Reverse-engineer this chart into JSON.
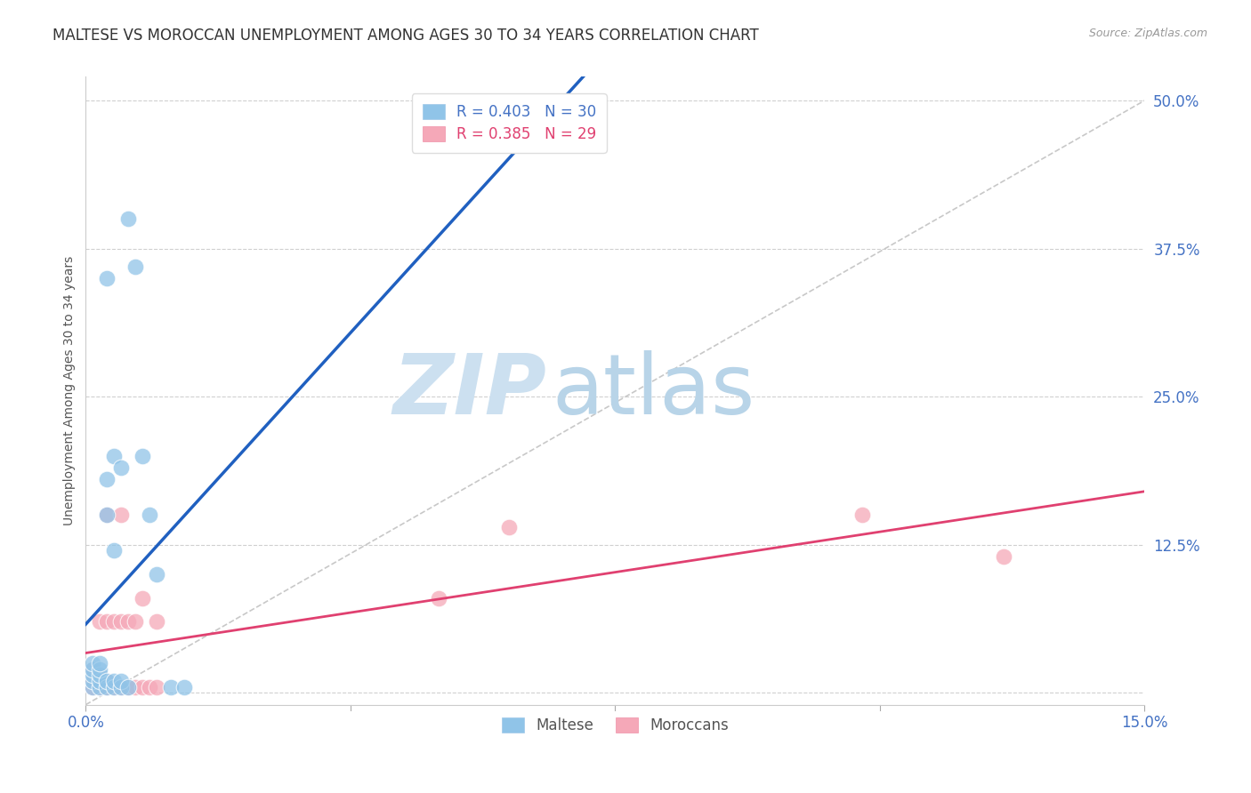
{
  "title": "MALTESE VS MOROCCAN UNEMPLOYMENT AMONG AGES 30 TO 34 YEARS CORRELATION CHART",
  "source": "Source: ZipAtlas.com",
  "ylabel": "Unemployment Among Ages 30 to 34 years",
  "xmin": 0.0,
  "xmax": 0.15,
  "ymin": -0.01,
  "ymax": 0.52,
  "maltese_color": "#90c4e8",
  "moroccan_color": "#f5a8b8",
  "trend_line_maltese_color": "#2060c0",
  "trend_line_moroccan_color": "#e04070",
  "diagonal_color": "#c8c8c8",
  "maltese_R": 0.403,
  "maltese_N": 30,
  "moroccan_R": 0.385,
  "moroccan_N": 29,
  "maltese_x": [
    0.001,
    0.001,
    0.001,
    0.001,
    0.001,
    0.002,
    0.002,
    0.002,
    0.002,
    0.002,
    0.003,
    0.003,
    0.003,
    0.003,
    0.003,
    0.004,
    0.004,
    0.004,
    0.004,
    0.005,
    0.005,
    0.005,
    0.006,
    0.006,
    0.007,
    0.008,
    0.009,
    0.01,
    0.012,
    0.014
  ],
  "maltese_y": [
    0.005,
    0.01,
    0.015,
    0.02,
    0.025,
    0.005,
    0.01,
    0.015,
    0.02,
    0.025,
    0.005,
    0.01,
    0.15,
    0.18,
    0.35,
    0.005,
    0.01,
    0.12,
    0.2,
    0.005,
    0.01,
    0.19,
    0.005,
    0.4,
    0.36,
    0.2,
    0.15,
    0.1,
    0.005,
    0.005
  ],
  "moroccan_x": [
    0.001,
    0.001,
    0.001,
    0.002,
    0.002,
    0.002,
    0.002,
    0.003,
    0.003,
    0.003,
    0.003,
    0.004,
    0.004,
    0.005,
    0.005,
    0.005,
    0.006,
    0.006,
    0.007,
    0.007,
    0.008,
    0.008,
    0.009,
    0.01,
    0.01,
    0.05,
    0.06,
    0.11,
    0.13
  ],
  "moroccan_y": [
    0.005,
    0.01,
    0.02,
    0.005,
    0.01,
    0.015,
    0.06,
    0.005,
    0.01,
    0.06,
    0.15,
    0.005,
    0.06,
    0.005,
    0.06,
    0.15,
    0.005,
    0.06,
    0.005,
    0.06,
    0.005,
    0.08,
    0.005,
    0.005,
    0.06,
    0.08,
    0.14,
    0.15,
    0.115
  ],
  "watermark_zip": "ZIP",
  "watermark_atlas": "atlas",
  "watermark_color_zip": "#cce0f0",
  "watermark_color_atlas": "#b8d4e8",
  "legend_maltese_text": "Maltese",
  "legend_moroccan_text": "Moroccans",
  "title_fontsize": 12,
  "source_fontsize": 9,
  "axis_label_fontsize": 10,
  "tick_fontsize": 12,
  "legend_fontsize": 12
}
